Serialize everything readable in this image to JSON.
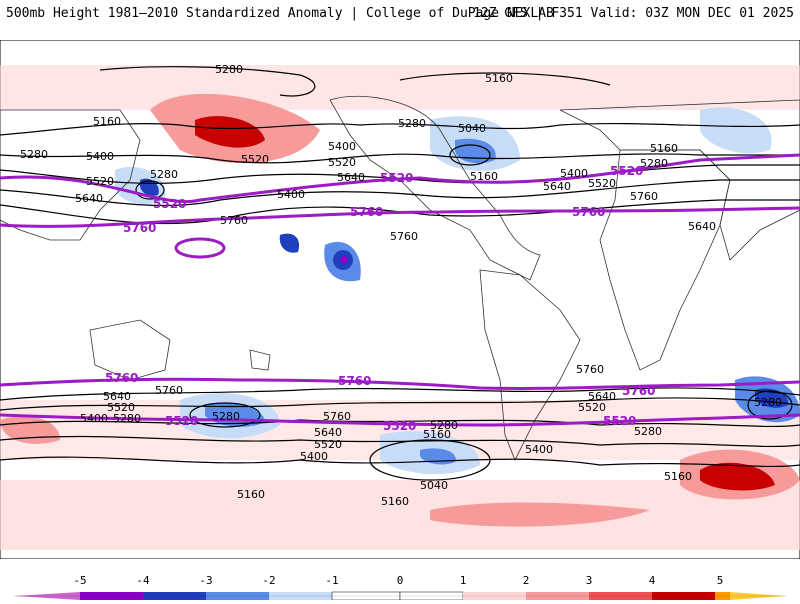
{
  "header": {
    "title_left": "500mb Height 1981–2010 Standardized Anomaly | College of DuPage NEXLAB",
    "title_right": "12Z GFS | F351 Valid: 03Z MON DEC 01 2025"
  },
  "colors": {
    "neg5": "#cc66cc",
    "neg4": "#8b00c8",
    "neg3": "#1f3fbf",
    "neg2": "#5b8be8",
    "neg1": "#c6dcf7",
    "zero": "#ffffff",
    "pos1": "#ffd6d6",
    "pos2": "#f79a9a",
    "pos3": "#ef5050",
    "pos4": "#c80000",
    "pos5": "#ff9900",
    "contour": "#000000",
    "highlight": "#9b1bc4"
  },
  "contours": {
    "nh_5280": "5280",
    "nh_5160": "5160",
    "nh_5400": "5400",
    "nh_5520": "5520",
    "nh_5640": "5640",
    "nh_5760": "5760",
    "nh_5040": "5040",
    "sh_5760": "5760",
    "sh_5640": "5640",
    "sh_5520": "5520",
    "sh_5400": "5400",
    "sh_5280": "5280",
    "sh_5160": "5160",
    "sh_5040": "5040"
  },
  "colorbar": {
    "ticks": [
      "-5",
      "-4",
      "-3",
      "-2",
      "-1",
      "0",
      "1",
      "2",
      "3",
      "4",
      "5"
    ]
  }
}
